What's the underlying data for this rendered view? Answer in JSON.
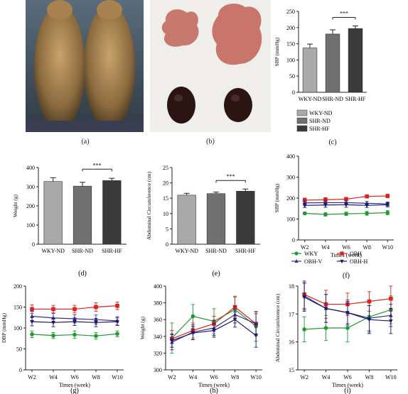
{
  "panel_labels": [
    "(a)",
    "(b)",
    "(c)",
    "(d)",
    "(e)",
    "(f)",
    "(g)",
    "(h)",
    "(i)"
  ],
  "photo_a": {
    "description": "Two rats, dorsal view, on dark background",
    "icon": "rats-photo"
  },
  "photo_b": {
    "description": "Two adipose tissue samples above two kidneys",
    "icon": "tissue-photo"
  },
  "chart_data": [
    {
      "id": "c",
      "type": "bar",
      "categories": [
        "WKY-ND",
        "SHR-ND",
        "SHR-HF"
      ],
      "values": [
        137,
        180,
        197
      ],
      "errors": [
        12,
        13,
        8
      ],
      "colors": [
        "#a9a9a9",
        "#707070",
        "#3a3a3a"
      ],
      "ylabel": "SBP (mmHg)",
      "ylim": [
        0,
        250
      ],
      "yticks": [
        0,
        50,
        100,
        150,
        200,
        250
      ],
      "significance": {
        "from": 1,
        "to": 2,
        "label": "***"
      },
      "legend": [
        "WKY-ND",
        "SHR-ND",
        "SHR-HF"
      ]
    },
    {
      "id": "d",
      "type": "bar",
      "categories": [
        "WKY-ND",
        "SHR-ND",
        "SHR-HF"
      ],
      "values": [
        327,
        303,
        332
      ],
      "errors": [
        20,
        20,
        12
      ],
      "colors": [
        "#a9a9a9",
        "#707070",
        "#3a3a3a"
      ],
      "ylabel": "Weight (g)",
      "ylim": [
        0,
        400
      ],
      "yticks": [
        0,
        100,
        200,
        300,
        400
      ],
      "significance": {
        "from": 1,
        "to": 2,
        "label": "***"
      }
    },
    {
      "id": "e",
      "type": "bar",
      "categories": [
        "WKY-ND",
        "SHR-ND",
        "SHR-HF"
      ],
      "values": [
        16,
        16.5,
        17.3
      ],
      "errors": [
        0.6,
        0.5,
        0.7
      ],
      "colors": [
        "#a9a9a9",
        "#707070",
        "#3a3a3a"
      ],
      "ylabel": "Abdominal Circumference (cm)",
      "ylim": [
        0,
        25
      ],
      "yticks": [
        0,
        5,
        10,
        15,
        20,
        25
      ],
      "significance": {
        "from": 1,
        "to": 2,
        "label": "***"
      }
    },
    {
      "id": "f",
      "type": "line",
      "x": [
        "W2",
        "W4",
        "W6",
        "W8",
        "W10"
      ],
      "xlabel": "Times (week)",
      "ylabel": "SBP (mmHg)",
      "ylim": [
        0,
        400
      ],
      "yticks": [
        0,
        100,
        200,
        300,
        400
      ],
      "series": [
        {
          "name": "WKY",
          "color": "#1f9a2e",
          "marker": "circle",
          "values": [
            127,
            122,
            125,
            127,
            130
          ],
          "errors": [
            6,
            8,
            8,
            9,
            10
          ]
        },
        {
          "name": "OBH",
          "color": "#e0201b",
          "marker": "square",
          "values": [
            190,
            192,
            195,
            208,
            210
          ],
          "errors": [
            10,
            10,
            8,
            7,
            8
          ]
        },
        {
          "name": "OBH-V",
          "color": "#3b2d8c",
          "marker": "triangle-up",
          "values": [
            177,
            178,
            178,
            175,
            172
          ],
          "errors": [
            12,
            11,
            10,
            9,
            9
          ]
        },
        {
          "name": "OBH-H",
          "color": "#1a1a6e",
          "marker": "triangle-down",
          "values": [
            165,
            167,
            168,
            165,
            168
          ],
          "errors": [
            10,
            11,
            12,
            10,
            10
          ]
        }
      ],
      "legend": [
        "WKY",
        "OBH",
        "OBH-V",
        "OBH-H"
      ]
    },
    {
      "id": "g",
      "type": "line",
      "x": [
        "W2",
        "W4",
        "W6",
        "W8",
        "W10"
      ],
      "xlabel": "Times (week)",
      "ylabel": "DBP (mmHg)",
      "ylim": [
        0,
        200
      ],
      "yticks": [
        0,
        50,
        100,
        150,
        200
      ],
      "series": [
        {
          "name": "WKY",
          "color": "#1f9a2e",
          "marker": "circle",
          "values": [
            85,
            82,
            84,
            81,
            86
          ],
          "errors": [
            8,
            7,
            9,
            8,
            7
          ]
        },
        {
          "name": "OBH",
          "color": "#e0201b",
          "marker": "square",
          "values": [
            145,
            145,
            145,
            150,
            153
          ],
          "errors": [
            10,
            9,
            9,
            10,
            9
          ]
        },
        {
          "name": "OBH-V",
          "color": "#3b2d8c",
          "marker": "triangle-up",
          "values": [
            128,
            124,
            122,
            120,
            117
          ],
          "errors": [
            12,
            11,
            10,
            11,
            10
          ]
        },
        {
          "name": "OBH-H",
          "color": "#1a1a6e",
          "marker": "triangle-down",
          "values": [
            115,
            113,
            115,
            113,
            115
          ],
          "errors": [
            10,
            10,
            9,
            10,
            9
          ]
        }
      ]
    },
    {
      "id": "h",
      "type": "line",
      "x": [
        "W2",
        "W4",
        "W6",
        "W8",
        "W10"
      ],
      "xlabel": "Times (week)",
      "ylabel": "Weight (g)",
      "ylim": [
        300,
        400
      ],
      "yticks": [
        300,
        320,
        340,
        360,
        380,
        400
      ],
      "series": [
        {
          "name": "WKY",
          "color": "#1f9a2e",
          "marker": "circle",
          "values": [
            338,
            364,
            358,
            372,
            352
          ],
          "errors": [
            18,
            14,
            15,
            16,
            18
          ]
        },
        {
          "name": "OBH",
          "color": "#e0201b",
          "marker": "square",
          "values": [
            337,
            347,
            355,
            375,
            355
          ],
          "errors": [
            10,
            9,
            9,
            12,
            14
          ]
        },
        {
          "name": "OBH-V",
          "color": "#3b2d8c",
          "marker": "triangle-up",
          "values": [
            333,
            345,
            350,
            366,
            355
          ],
          "errors": [
            9,
            9,
            9,
            10,
            12
          ]
        },
        {
          "name": "OBH-H",
          "color": "#1a1a6e",
          "marker": "triangle-down",
          "values": [
            335,
            344,
            347,
            360,
            341
          ],
          "errors": [
            8,
            8,
            8,
            9,
            14
          ]
        }
      ]
    },
    {
      "id": "i",
      "type": "line",
      "x": [
        "W2",
        "W4",
        "W6",
        "W8",
        "W10"
      ],
      "xlabel": "Times (week)",
      "ylabel": "Abdominal Circumference (cm)",
      "ylim": [
        15,
        18
      ],
      "yticks": [
        15,
        16,
        17,
        18
      ],
      "series": [
        {
          "name": "WKY",
          "color": "#1f9a2e",
          "marker": "circle",
          "values": [
            16.45,
            16.5,
            16.5,
            16.9,
            17.15
          ],
          "errors": [
            0.45,
            0.45,
            0.5,
            0.55,
            0.5
          ]
        },
        {
          "name": "OBH",
          "color": "#e0201b",
          "marker": "square",
          "values": [
            17.7,
            17.35,
            17.35,
            17.45,
            17.55
          ],
          "errors": [
            0.5,
            0.5,
            0.4,
            0.35,
            0.45
          ]
        },
        {
          "name": "OBH-V",
          "color": "#3b2d8c",
          "marker": "triangle-up",
          "values": [
            17.65,
            17.2,
            17.05,
            16.85,
            16.95
          ],
          "errors": [
            0.5,
            0.5,
            0.45,
            0.45,
            0.4
          ]
        },
        {
          "name": "OBH-H",
          "color": "#1a1a6e",
          "marker": "triangle-down",
          "values": [
            17.6,
            17.2,
            17.05,
            16.8,
            16.75
          ],
          "errors": [
            0.5,
            0.5,
            0.4,
            0.5,
            0.45
          ]
        }
      ]
    }
  ]
}
